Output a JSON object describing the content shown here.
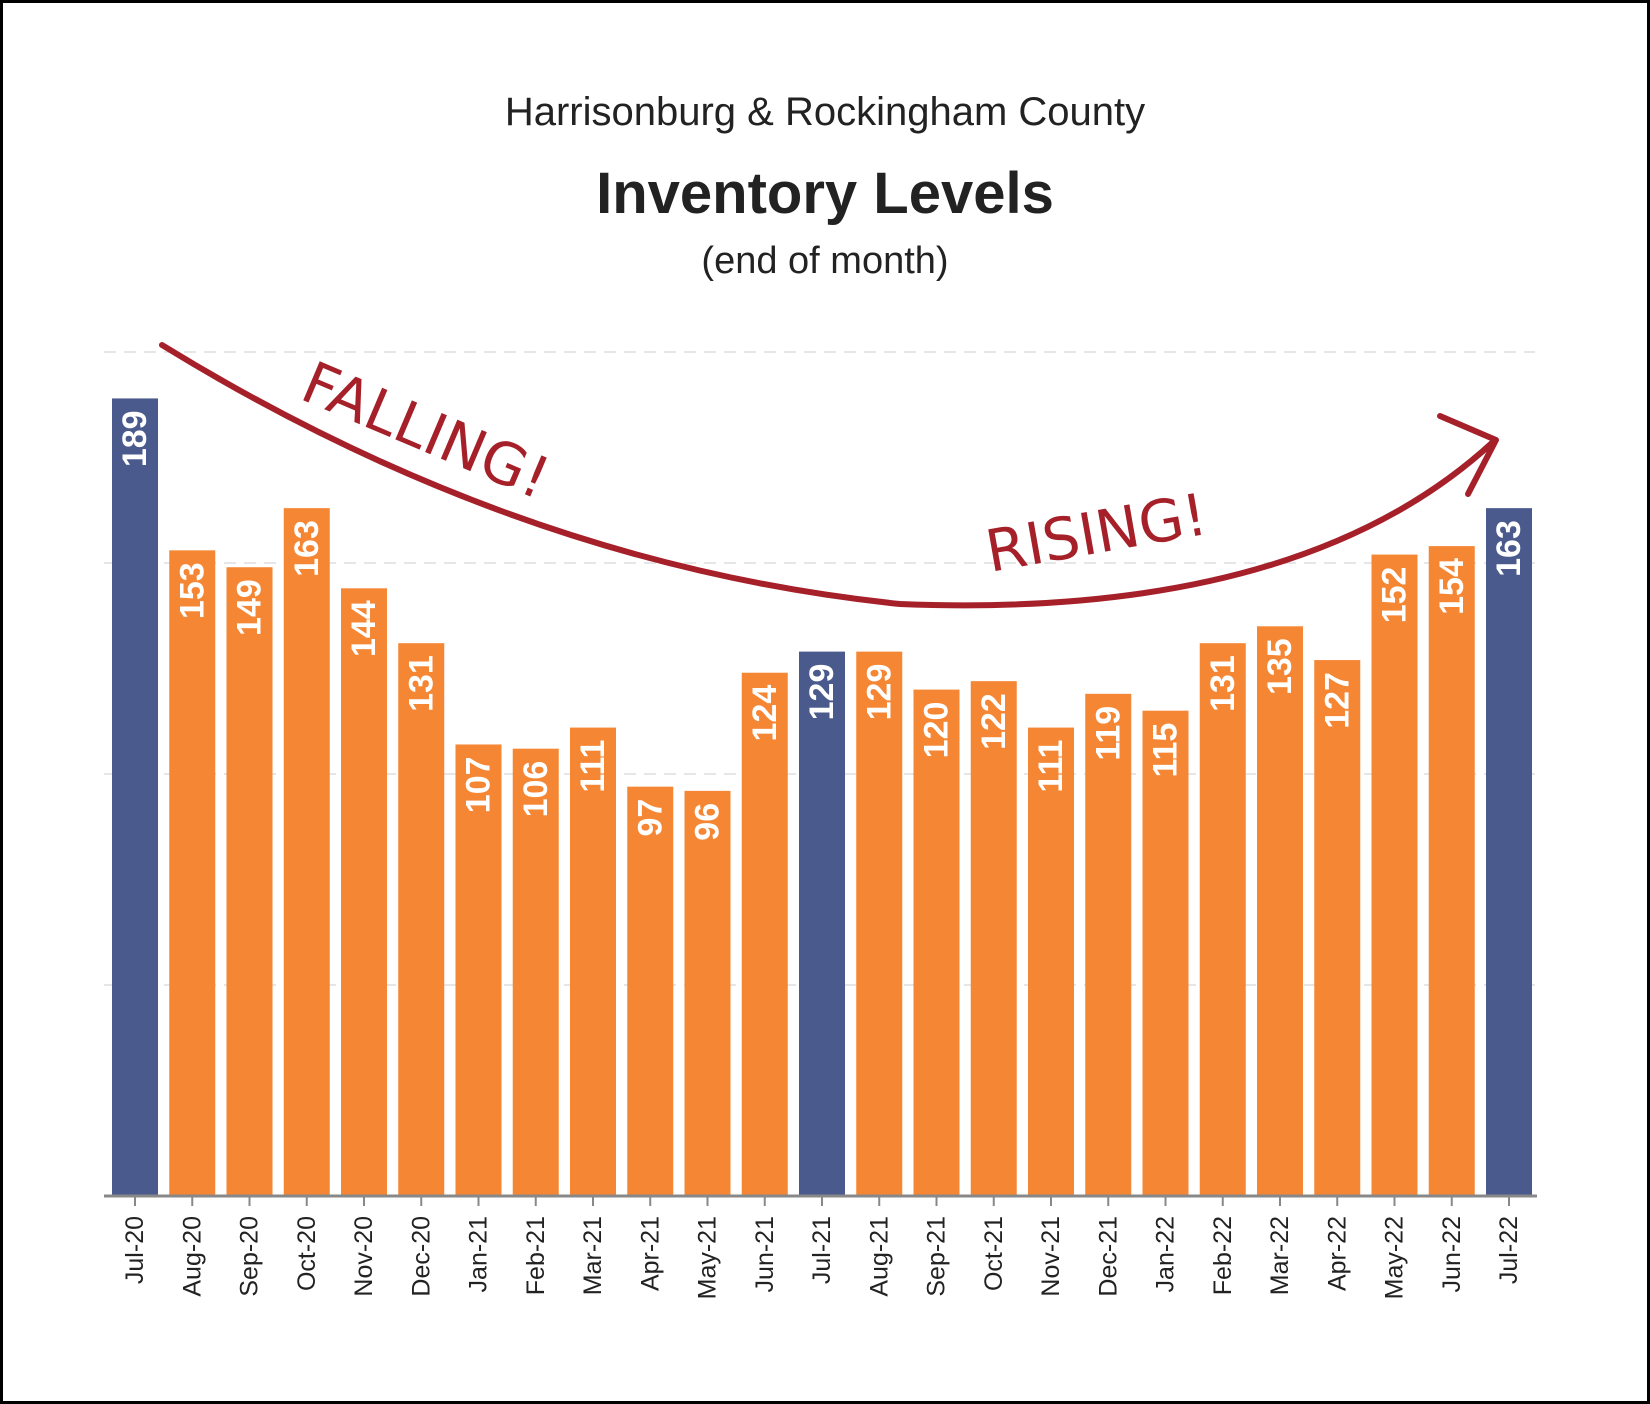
{
  "chart_data": {
    "type": "bar",
    "title": "Inventory Levels",
    "subtitle_top": "Harrisonburg & Rockingham County",
    "subtitle_bottom": "(end of month)",
    "categories": [
      "Jul-20",
      "Aug-20",
      "Sep-20",
      "Oct-20",
      "Nov-20",
      "Dec-20",
      "Jan-21",
      "Feb-21",
      "Mar-21",
      "Apr-21",
      "May-21",
      "Jun-21",
      "Jul-21",
      "Aug-21",
      "Sep-21",
      "Oct-21",
      "Nov-21",
      "Dec-21",
      "Jan-22",
      "Feb-22",
      "Mar-22",
      "Apr-22",
      "May-22",
      "Jun-22",
      "Jul-22"
    ],
    "values": [
      189,
      153,
      149,
      163,
      144,
      131,
      107,
      106,
      111,
      97,
      96,
      124,
      129,
      129,
      120,
      122,
      111,
      119,
      115,
      131,
      135,
      127,
      152,
      154,
      163
    ],
    "highlighted": [
      "Jul-20",
      "Jul-21",
      "Jul-22"
    ],
    "colors": {
      "bar": "#f58634",
      "highlight": "#4a5a8c",
      "annotation": "#a6202a",
      "gridline": "#e6e6e6"
    },
    "ylim": [
      0,
      200
    ],
    "grid": true,
    "gridlines": [
      50,
      100,
      150,
      200
    ],
    "annotations": [
      "FALLING!",
      "RISING!"
    ]
  }
}
